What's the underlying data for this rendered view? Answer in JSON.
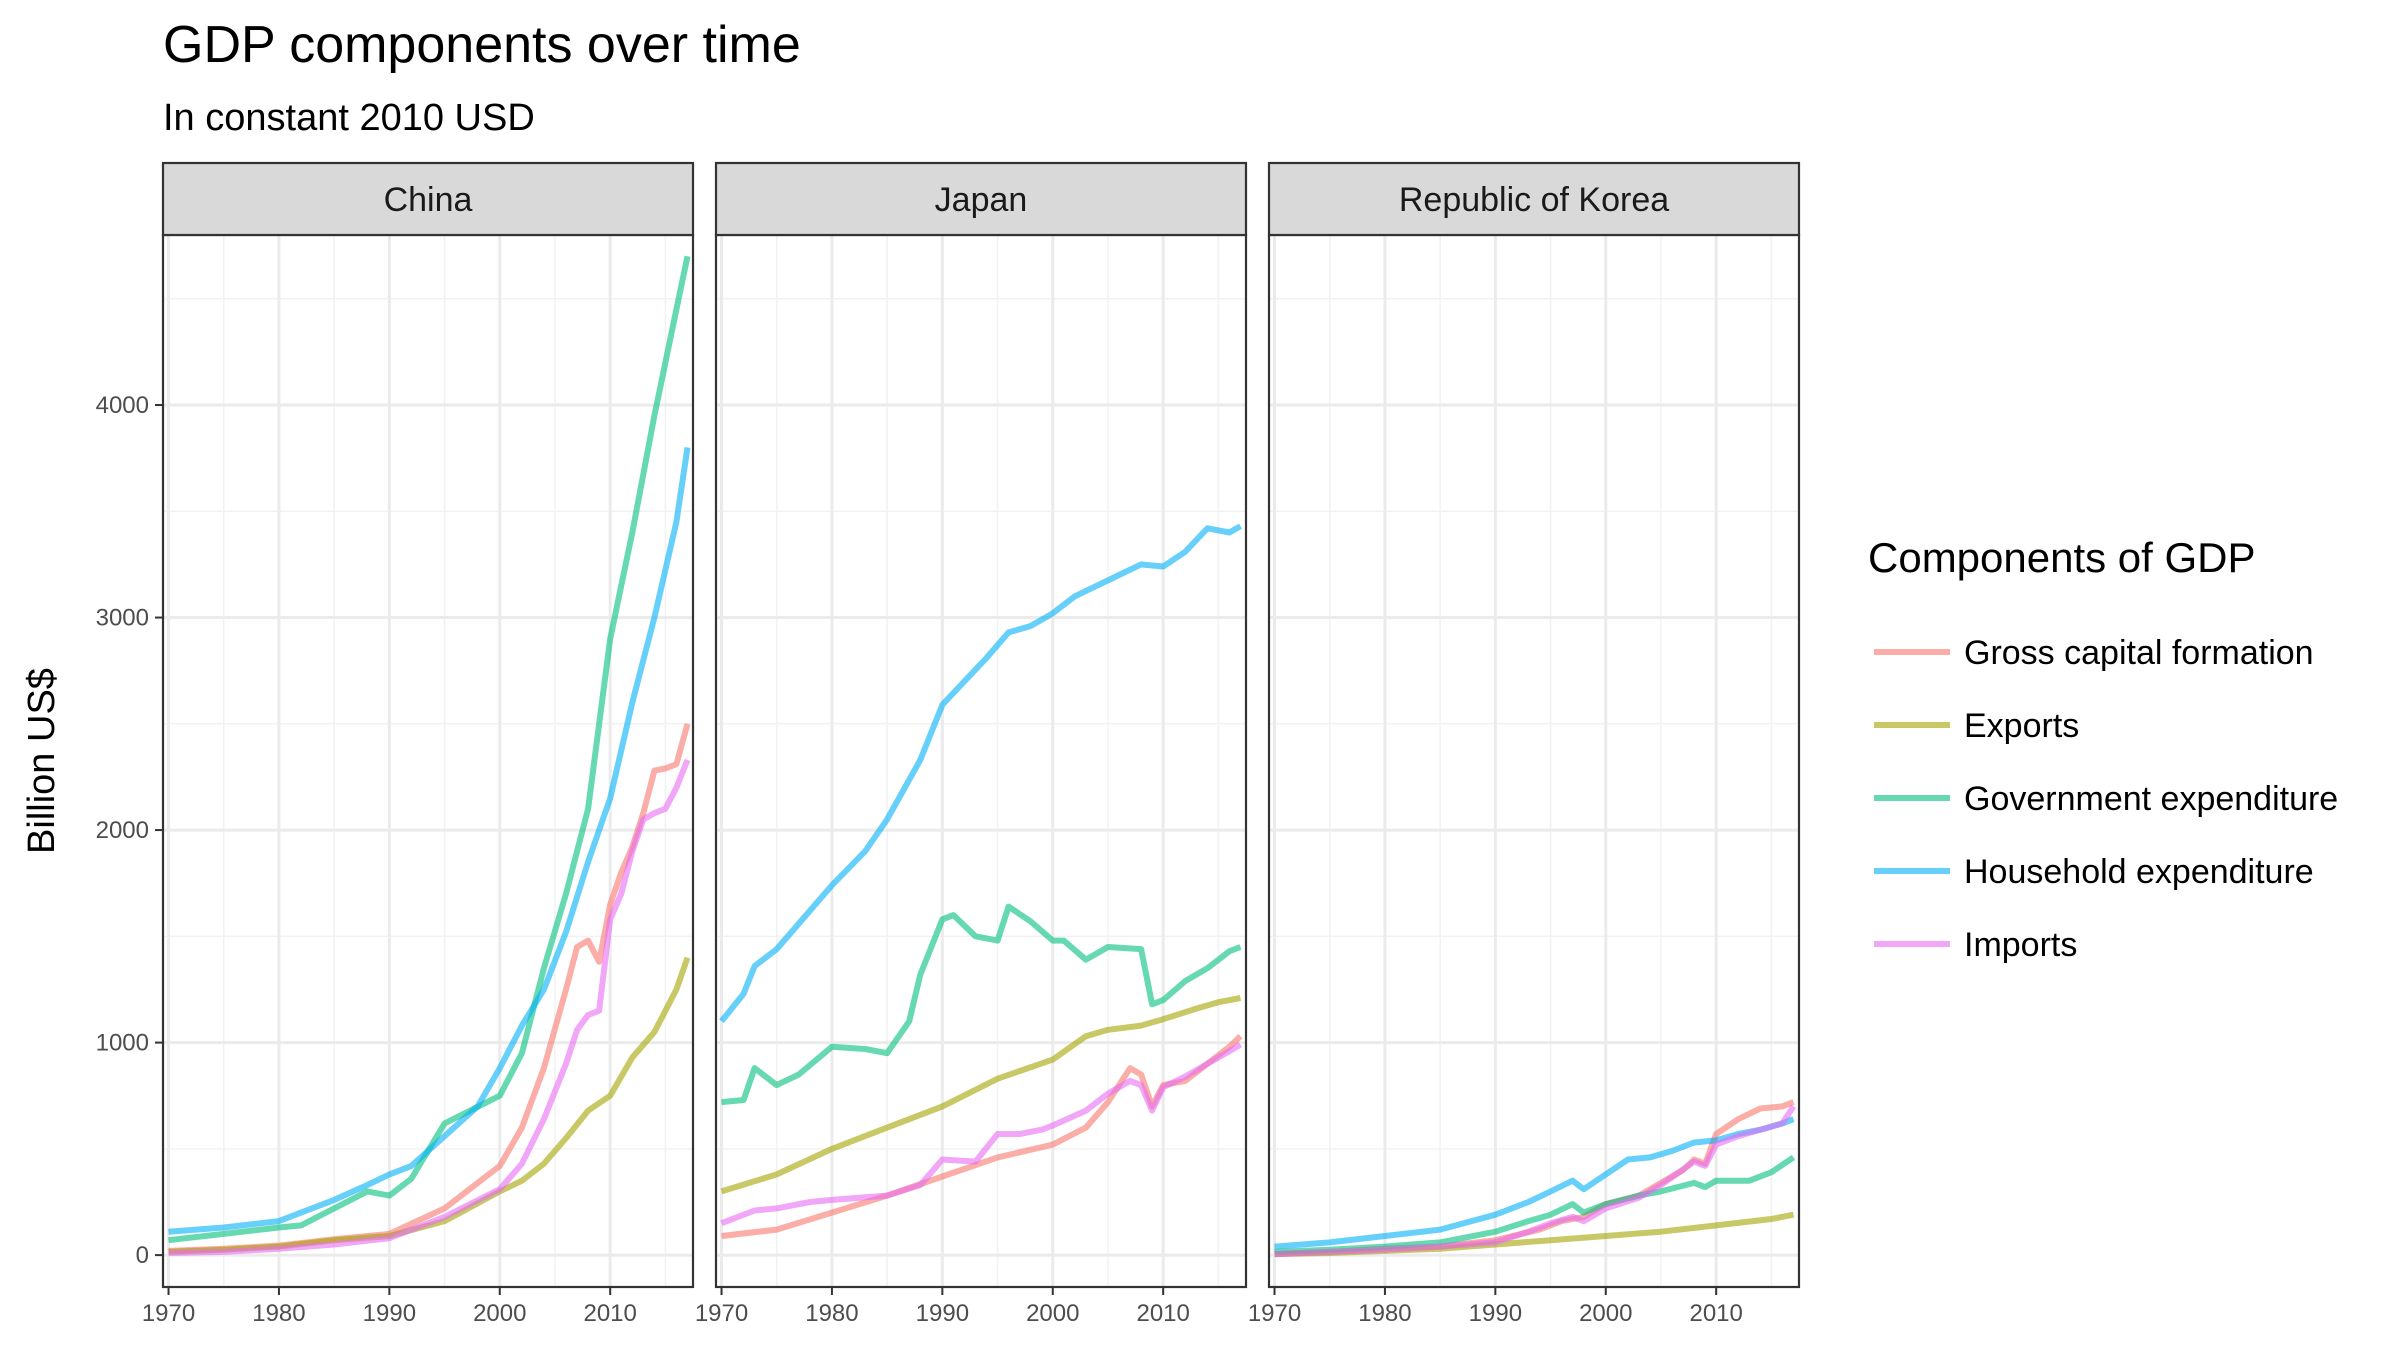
{
  "title": "GDP components over time",
  "subtitle": "In constant 2010 USD",
  "chart_data": {
    "type": "line",
    "title": "GDP components over time",
    "subtitle": "In constant 2010 USD",
    "ylabel": "Billion US$",
    "xlabel": "",
    "xlim": [
      1969.5,
      2017.5
    ],
    "ylim": [
      -150,
      4800
    ],
    "x_ticks": [
      1970,
      1980,
      1990,
      2000,
      2010
    ],
    "y_ticks": [
      0,
      1000,
      2000,
      3000,
      4000
    ],
    "grid": true,
    "legend": {
      "title": "Components of GDP",
      "position": "right",
      "entries": [
        "Gross capital formation",
        "Exports",
        "Government expenditure",
        "Household expenditure",
        "Imports"
      ]
    },
    "colors": {
      "Gross capital formation": "#F8766D",
      "Exports": "#A3A500",
      "Government expenditure": "#00BF7D",
      "Household expenditure": "#00B0F6",
      "Imports": "#E76BF3"
    },
    "facets": [
      {
        "name": "China",
        "series": [
          {
            "name": "Gross capital formation",
            "x": [
              1970,
              1975,
              1980,
              1985,
              1990,
              1995,
              2000,
              2002,
              2004,
              2006,
              2007,
              2008,
              2009,
              2010,
              2011,
              2012,
              2013,
              2014,
              2015,
              2016,
              2017
            ],
            "y": [
              20,
              30,
              45,
              75,
              100,
              220,
              420,
              600,
              880,
              1250,
              1450,
              1480,
              1380,
              1650,
              1800,
              1920,
              2080,
              2280,
              2290,
              2310,
              2500
            ]
          },
          {
            "name": "Exports",
            "x": [
              1970,
              1975,
              1980,
              1985,
              1990,
              1995,
              2000,
              2002,
              2004,
              2006,
              2008,
              2010,
              2012,
              2014,
              2016,
              2017
            ],
            "y": [
              15,
              25,
              40,
              70,
              90,
              160,
              300,
              350,
              430,
              550,
              680,
              750,
              930,
              1050,
              1250,
              1400
            ]
          },
          {
            "name": "Government expenditure",
            "x": [
              1970,
              1975,
              1980,
              1982,
              1985,
              1988,
              1990,
              1992,
              1995,
              2000,
              2002,
              2004,
              2006,
              2008,
              2010,
              2012,
              2014,
              2016,
              2017
            ],
            "y": [
              70,
              100,
              130,
              140,
              220,
              300,
              280,
              360,
              620,
              750,
              950,
              1350,
              1700,
              2100,
              2900,
              3400,
              3950,
              4450,
              4700
            ]
          },
          {
            "name": "Household expenditure",
            "x": [
              1970,
              1975,
              1980,
              1985,
              1988,
              1990,
              1992,
              1995,
              1998,
              2000,
              2002,
              2004,
              2006,
              2008,
              2010,
              2012,
              2014,
              2016,
              2017
            ],
            "y": [
              110,
              130,
              160,
              260,
              330,
              380,
              420,
              560,
              700,
              880,
              1080,
              1250,
              1520,
              1850,
              2150,
              2600,
              3000,
              3450,
              3800
            ]
          },
          {
            "name": "Imports",
            "x": [
              1970,
              1975,
              1980,
              1985,
              1990,
              1995,
              2000,
              2002,
              2004,
              2006,
              2007,
              2008,
              2009,
              2010,
              2011,
              2012,
              2013,
              2014,
              2015,
              2016,
              2017
            ],
            "y": [
              10,
              15,
              30,
              50,
              80,
              180,
              310,
              430,
              640,
              900,
              1060,
              1130,
              1150,
              1580,
              1700,
              1900,
              2050,
              2080,
              2100,
              2200,
              2330
            ]
          }
        ]
      },
      {
        "name": "Japan",
        "series": [
          {
            "name": "Gross capital formation",
            "x": [
              1970,
              1975,
              1980,
              1985,
              1990,
              1995,
              2000,
              2003,
              2005,
              2007,
              2008,
              2009,
              2010,
              2012,
              2014,
              2016,
              2017
            ],
            "y": [
              90,
              120,
              200,
              280,
              370,
              460,
              520,
              600,
              720,
              880,
              850,
              700,
              800,
              820,
              900,
              980,
              1030
            ]
          },
          {
            "name": "Exports",
            "x": [
              1970,
              1975,
              1980,
              1985,
              1990,
              1995,
              2000,
              2003,
              2005,
              2008,
              2010,
              2013,
              2015,
              2017
            ],
            "y": [
              300,
              380,
              500,
              600,
              700,
              830,
              920,
              1030,
              1060,
              1080,
              1110,
              1160,
              1190,
              1210
            ]
          },
          {
            "name": "Government expenditure",
            "x": [
              1970,
              1972,
              1973,
              1975,
              1977,
              1980,
              1983,
              1985,
              1987,
              1988,
              1990,
              1991,
              1993,
              1995,
              1996,
              1998,
              2000,
              2001,
              2003,
              2005,
              2008,
              2009,
              2010,
              2012,
              2014,
              2016,
              2017
            ],
            "y": [
              720,
              730,
              880,
              800,
              850,
              980,
              970,
              950,
              1100,
              1320,
              1580,
              1600,
              1500,
              1480,
              1640,
              1570,
              1480,
              1480,
              1390,
              1450,
              1440,
              1180,
              1200,
              1290,
              1350,
              1430,
              1450
            ]
          },
          {
            "name": "Household expenditure",
            "x": [
              1970,
              1972,
              1973,
              1975,
              1977,
              1980,
              1983,
              1985,
              1988,
              1990,
              1992,
              1994,
              1996,
              1998,
              2000,
              2002,
              2004,
              2006,
              2008,
              2010,
              2012,
              2014,
              2016,
              2017
            ],
            "y": [
              1100,
              1230,
              1360,
              1440,
              1560,
              1740,
              1900,
              2050,
              2330,
              2590,
              2700,
              2810,
              2930,
              2960,
              3020,
              3100,
              3150,
              3200,
              3250,
              3240,
              3310,
              3420,
              3400,
              3430
            ]
          },
          {
            "name": "Imports",
            "x": [
              1970,
              1973,
              1975,
              1978,
              1980,
              1985,
              1988,
              1990,
              1993,
              1995,
              1997,
              1999,
              2000,
              2003,
              2005,
              2007,
              2008,
              2009,
              2010,
              2012,
              2014,
              2016,
              2017
            ],
            "y": [
              150,
              210,
              220,
              250,
              260,
              280,
              330,
              450,
              440,
              570,
              570,
              590,
              610,
              680,
              760,
              820,
              800,
              680,
              790,
              840,
              900,
              960,
              990
            ]
          }
        ]
      },
      {
        "name": "Republic of Korea",
        "series": [
          {
            "name": "Gross capital formation",
            "x": [
              1970,
              1975,
              1980,
              1985,
              1990,
              1994,
              1996,
              1998,
              2000,
              2003,
              2005,
              2007,
              2008,
              2009,
              2010,
              2012,
              2014,
              2016,
              2017
            ],
            "y": [
              5,
              15,
              30,
              40,
              70,
              120,
              160,
              180,
              240,
              280,
              340,
              400,
              450,
              430,
              570,
              640,
              690,
              700,
              720
            ]
          },
          {
            "name": "Exports",
            "x": [
              1970,
              1975,
              1980,
              1985,
              1990,
              1995,
              2000,
              2005,
              2010,
              2015,
              2017
            ],
            "y": [
              5,
              10,
              20,
              30,
              50,
              70,
              90,
              110,
              140,
              170,
              190
            ]
          },
          {
            "name": "Government expenditure",
            "x": [
              1970,
              1975,
              1980,
              1985,
              1990,
              1993,
              1995,
              1997,
              1998,
              2000,
              2003,
              2005,
              2008,
              2009,
              2010,
              2013,
              2015,
              2017
            ],
            "y": [
              15,
              25,
              40,
              60,
              110,
              160,
              190,
              240,
              200,
              240,
              280,
              300,
              340,
              320,
              350,
              350,
              390,
              460
            ]
          },
          {
            "name": "Household expenditure",
            "x": [
              1970,
              1975,
              1980,
              1985,
              1990,
              1993,
              1995,
              1997,
              1998,
              2000,
              2002,
              2004,
              2006,
              2008,
              2010,
              2012,
              2014,
              2016,
              2017
            ],
            "y": [
              40,
              60,
              90,
              120,
              190,
              250,
              300,
              350,
              310,
              380,
              450,
              460,
              490,
              530,
              540,
              570,
              590,
              620,
              640
            ]
          },
          {
            "name": "Imports",
            "x": [
              1970,
              1975,
              1980,
              1985,
              1990,
              1993,
              1995,
              1997,
              1998,
              2000,
              2003,
              2005,
              2008,
              2009,
              2010,
              2012,
              2014,
              2016,
              2017
            ],
            "y": [
              5,
              15,
              25,
              40,
              60,
              110,
              150,
              180,
              160,
              220,
              270,
              330,
              440,
              420,
              520,
              560,
              590,
              620,
              700
            ]
          }
        ]
      }
    ]
  }
}
